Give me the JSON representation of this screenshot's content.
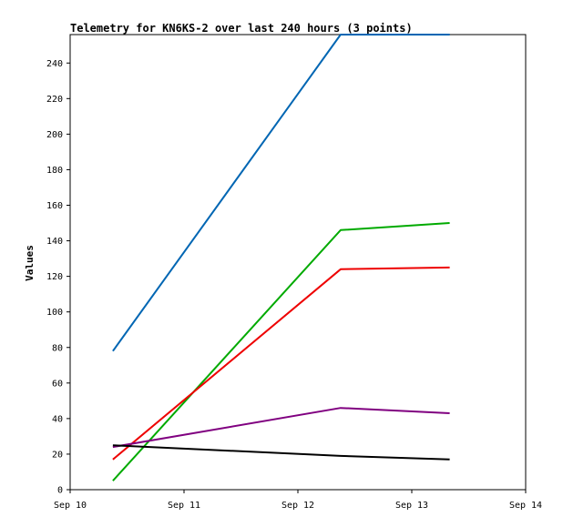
{
  "chart_data": {
    "type": "line",
    "title": "Telemetry for KN6KS-2 over last 240 hours (3 points)",
    "xlabel": "",
    "ylabel": "Values",
    "x_tick_labels": [
      "Sep 10",
      "Sep 11",
      "Sep 12",
      "Sep 13",
      "Sep 14"
    ],
    "x_tick_days": [
      0,
      1,
      2,
      3,
      4
    ],
    "y_ticks": [
      0,
      20,
      40,
      60,
      80,
      100,
      120,
      140,
      160,
      180,
      200,
      220,
      240
    ],
    "xlim": [
      0,
      4
    ],
    "ylim": [
      0,
      256
    ],
    "grid": false,
    "x_points": [
      "Sep 10 09:00",
      "Sep 12 09:00",
      "Sep 13 08:00"
    ],
    "x_points_day": [
      0.375,
      2.375,
      3.333
    ],
    "series": [
      {
        "color": "#0066b3",
        "values": [
          78,
          256,
          256
        ]
      },
      {
        "color": "#00aa00",
        "values": [
          5,
          146,
          150
        ]
      },
      {
        "color": "#ee0000",
        "values": [
          17,
          124,
          125
        ]
      },
      {
        "color": "#800080",
        "values": [
          24,
          46,
          43
        ]
      },
      {
        "color": "#000000",
        "values": [
          25,
          19,
          17
        ]
      }
    ]
  }
}
